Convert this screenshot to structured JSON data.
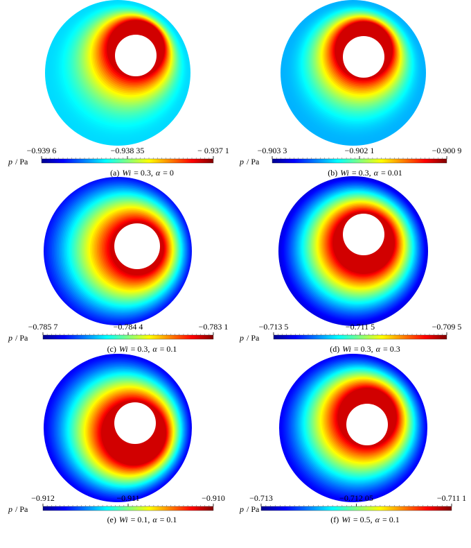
{
  "chart_data": [
    {
      "type": "contour",
      "colorbar_label": [
        "p",
        "/ Pa"
      ],
      "caption": [
        "(a)",
        "Wi",
        "= 0.3,",
        "α",
        "= 0"
      ],
      "cticks": [
        {
          "value": -0.9396,
          "label": "−0.939 6"
        },
        {
          "value": -0.93835,
          "label": "−0.938 35"
        },
        {
          "value": -0.9371,
          "label": "− 0.937 1"
        }
      ]
    },
    {
      "type": "contour",
      "colorbar_label": [
        "p",
        "/ Pa"
      ],
      "caption": [
        "(b)",
        "Wi",
        "= 0.3,",
        "α",
        "= 0.01"
      ],
      "cticks": [
        {
          "value": -0.9033,
          "label": "−0.903 3"
        },
        {
          "value": -0.9021,
          "label": "−0.902 1"
        },
        {
          "value": -0.9009,
          "label": "−0.900 9"
        }
      ]
    },
    {
      "type": "contour",
      "colorbar_label": [
        "p",
        "/ Pa"
      ],
      "caption": [
        "(c)",
        "Wi",
        "= 0.3,",
        "α",
        "= 0.1"
      ],
      "cticks": [
        {
          "value": -0.7857,
          "label": "−0.785 7"
        },
        {
          "value": -0.7844,
          "label": "−0.784 4"
        },
        {
          "value": -0.7831,
          "label": "−0.783 1"
        }
      ]
    },
    {
      "type": "contour",
      "colorbar_label": [
        "p",
        "/ Pa"
      ],
      "caption": [
        "(d)",
        "Wi",
        "= 0.3,",
        "α",
        "= 0.3"
      ],
      "cticks": [
        {
          "value": -0.7135,
          "label": "−0.713 5"
        },
        {
          "value": -0.7115,
          "label": "−0.711 5"
        },
        {
          "value": -0.7095,
          "label": "−0.709 5"
        }
      ]
    },
    {
      "type": "contour",
      "colorbar_label": [
        "p",
        "/ Pa"
      ],
      "caption": [
        "(e)",
        "Wi",
        "= 0.1,",
        "α",
        "= 0.1"
      ],
      "cticks": [
        {
          "value": -0.912,
          "label": "−0.912"
        },
        {
          "value": -0.911,
          "label": "−0.911"
        },
        {
          "value": -0.91,
          "label": "−0.910"
        }
      ]
    },
    {
      "type": "contour",
      "colorbar_label": [
        "p",
        "/ Pa"
      ],
      "caption": [
        "(f)",
        "Wi",
        "= 0.5,",
        "α",
        "= 0.1"
      ],
      "cticks": [
        {
          "value": -0.713,
          "label": "−0.713"
        },
        {
          "value": -0.71205,
          "label": "−0.712 05"
        },
        {
          "value": -0.7111,
          "label": "−0.711 1"
        }
      ]
    }
  ]
}
